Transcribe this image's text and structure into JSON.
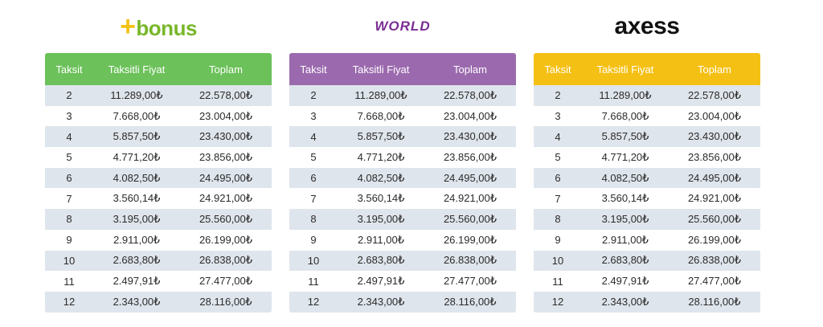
{
  "brands": [
    {
      "name": "+bonus",
      "prefix": "+",
      "label": "bonus",
      "header_color": "#6cc15a"
    },
    {
      "name": "WORLD",
      "label": "WORLD",
      "header_color": "#9b6aae"
    },
    {
      "name": "axess",
      "label": "axess",
      "header_color": "#f5c014"
    }
  ],
  "headers": [
    "Taksit",
    "Taksitli Fiyat",
    "Toplam"
  ],
  "rows": [
    [
      "2",
      "11.289,00₺",
      "22.578,00₺"
    ],
    [
      "3",
      "7.668,00₺",
      "23.004,00₺"
    ],
    [
      "4",
      "5.857,50₺",
      "23.430,00₺"
    ],
    [
      "5",
      "4.771,20₺",
      "23.856,00₺"
    ],
    [
      "6",
      "4.082,50₺",
      "24.495,00₺"
    ],
    [
      "7",
      "3.560,14₺",
      "24.921,00₺"
    ],
    [
      "8",
      "3.195,00₺",
      "25.560,00₺"
    ],
    [
      "9",
      "2.911,00₺",
      "26.199,00₺"
    ],
    [
      "10",
      "2.683,80₺",
      "26.838,00₺"
    ],
    [
      "11",
      "2.497,91₺",
      "27.477,00₺"
    ],
    [
      "12",
      "2.343,00₺",
      "28.116,00₺"
    ]
  ]
}
